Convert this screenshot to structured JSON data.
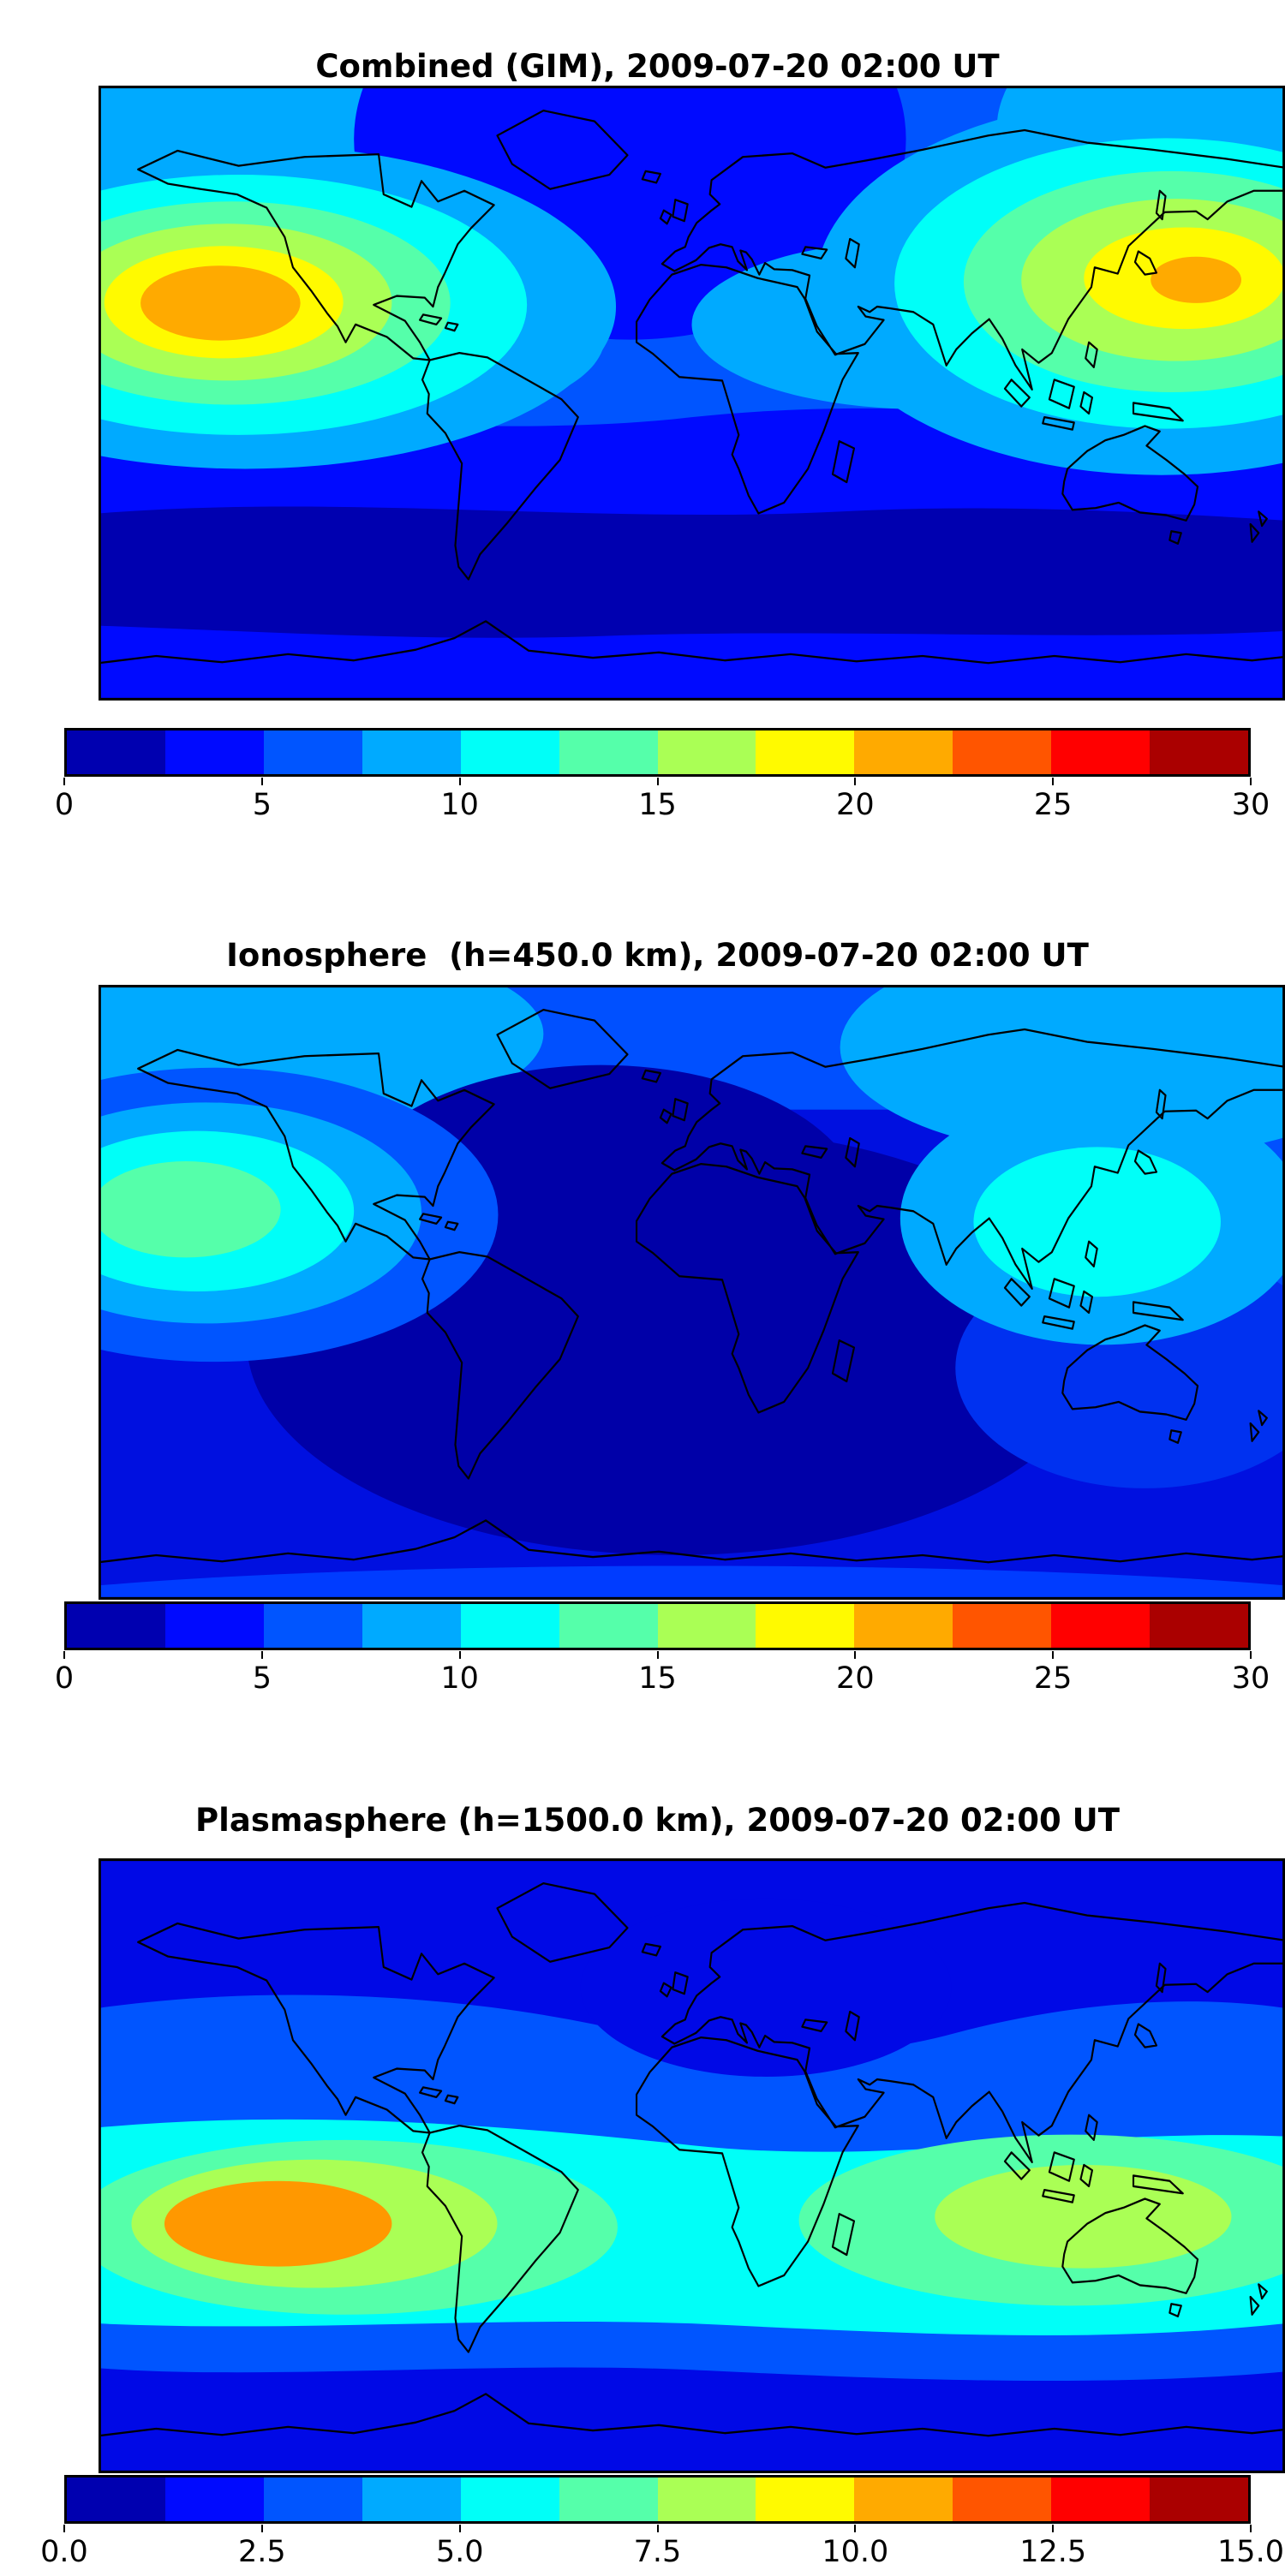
{
  "page": {
    "background_color": "#ffffff"
  },
  "palette_jet12": [
    "#0000b0",
    "#000aff",
    "#0055ff",
    "#00aaff",
    "#00fff8",
    "#55ffaa",
    "#aaff55",
    "#fffa00",
    "#ffaa00",
    "#ff5500",
    "#ff0000",
    "#aa0000"
  ],
  "panels": [
    {
      "id": "combined",
      "title": "Combined (GIM), 2009-07-20 02:00 UT",
      "colorbar": {
        "min": 0,
        "max": 30,
        "tick_labels": [
          "0",
          "5",
          "10",
          "15",
          "20",
          "25",
          "30"
        ]
      }
    },
    {
      "id": "ionosphere",
      "title": "Ionosphere  (h=450.0 km), 2009-07-20 02:00 UT",
      "colorbar": {
        "min": 0,
        "max": 30,
        "tick_labels": [
          "0",
          "5",
          "10",
          "15",
          "20",
          "25",
          "30"
        ]
      }
    },
    {
      "id": "plasmasphere",
      "title": "Plasmasphere (h=1500.0 km), 2009-07-20 02:00 UT",
      "colorbar": {
        "min": 0,
        "max": 15,
        "tick_labels": [
          "0.0",
          "2.5",
          "5.0",
          "7.5",
          "10.0",
          "12.5",
          "15.0"
        ]
      }
    }
  ],
  "chart_data": [
    {
      "type": "heatmap",
      "subtype": "filled_contour_world_map",
      "title": "Combined (GIM), 2009-07-20 02:00 UT",
      "layer": "Combined (GIM)",
      "datetime_ut": "2009-07-20 02:00 UT",
      "projection": "equirectangular",
      "lon_range": [
        -180,
        180
      ],
      "lat_range": [
        -90,
        90
      ],
      "colormap": "jet, 12 discrete bands",
      "value_range": [
        0,
        30
      ],
      "colorbar_ticks": [
        0,
        5,
        10,
        15,
        20,
        25,
        30
      ],
      "legend_position": "horizontal colorbar below map",
      "grid": false,
      "features": [
        {
          "feature": "daytime maximum over central/eastern Pacific",
          "lon": -140,
          "lat": 22,
          "approx_peak_value": 23
        },
        {
          "feature": "secondary maximum over east Asia / west Pacific",
          "lon": 142,
          "lat": 25,
          "approx_peak_value": 21
        },
        {
          "feature": "nighttime minimum over north Atlantic / Europe / north Africa",
          "lon": -15,
          "lat": 50,
          "approx_value": 3
        },
        {
          "feature": "southern high-latitude minimum band",
          "lon": 0,
          "lat": -55,
          "approx_value": 2
        },
        {
          "feature": "background mid-latitude level",
          "approx_value": 6
        }
      ]
    },
    {
      "type": "heatmap",
      "subtype": "filled_contour_world_map",
      "title": "Ionosphere  (h=450.0 km), 2009-07-20 02:00 UT",
      "layer": "Ionosphere (h=450.0 km)",
      "datetime_ut": "2009-07-20 02:00 UT",
      "projection": "equirectangular",
      "lon_range": [
        -180,
        180
      ],
      "lat_range": [
        -90,
        90
      ],
      "colormap": "jet, 12 discrete bands",
      "value_range": [
        0,
        30
      ],
      "colorbar_ticks": [
        0,
        5,
        10,
        15,
        20,
        25,
        30
      ],
      "legend_position": "horizontal colorbar below map",
      "grid": false,
      "features": [
        {
          "feature": "daytime maximum over central Pacific",
          "lon": -152,
          "lat": 24,
          "approx_peak_value": 14
        },
        {
          "feature": "secondary cyan patch over Philippines / west Pacific",
          "lon": 122,
          "lat": 20,
          "approx_peak_value": 11
        },
        {
          "feature": "broad nighttime minimum over Atlantic, Africa, South America, Indian Ocean",
          "approx_value": 3
        },
        {
          "feature": "lighter blue band along northern high latitudes",
          "approx_value": 7
        }
      ]
    },
    {
      "type": "heatmap",
      "subtype": "filled_contour_world_map",
      "title": "Plasmasphere (h=1500.0 km), 2009-07-20 02:00 UT",
      "layer": "Plasmasphere (h=1500.0 km)",
      "datetime_ut": "2009-07-20 02:00 UT",
      "projection": "equirectangular",
      "lon_range": [
        -180,
        180
      ],
      "lat_range": [
        -90,
        90
      ],
      "colormap": "jet, 12 discrete bands",
      "value_range": [
        0,
        15
      ],
      "colorbar_ticks": [
        0.0,
        2.5,
        5.0,
        7.5,
        10.0,
        12.5,
        15.0
      ],
      "legend_position": "horizontal colorbar below map",
      "grid": false,
      "features": [
        {
          "feature": "equatorial/low-latitude enhancement band around the globe",
          "approx_value_range": [
            5,
            8
          ]
        },
        {
          "feature": "maximum over eastern Pacific west of South America",
          "lon": -125,
          "lat": -15,
          "approx_peak_value": 12
        },
        {
          "feature": "secondary yellow-green maximum over Indonesia / northern Australia",
          "lon": 118,
          "lat": -14,
          "approx_peak_value": 10
        },
        {
          "feature": "polar minima north and south",
          "approx_value": 1.5
        },
        {
          "feature": "band pinched / weaker over Africa sector",
          "lon": 20,
          "lat": 5,
          "approx_value": 5
        }
      ]
    }
  ]
}
